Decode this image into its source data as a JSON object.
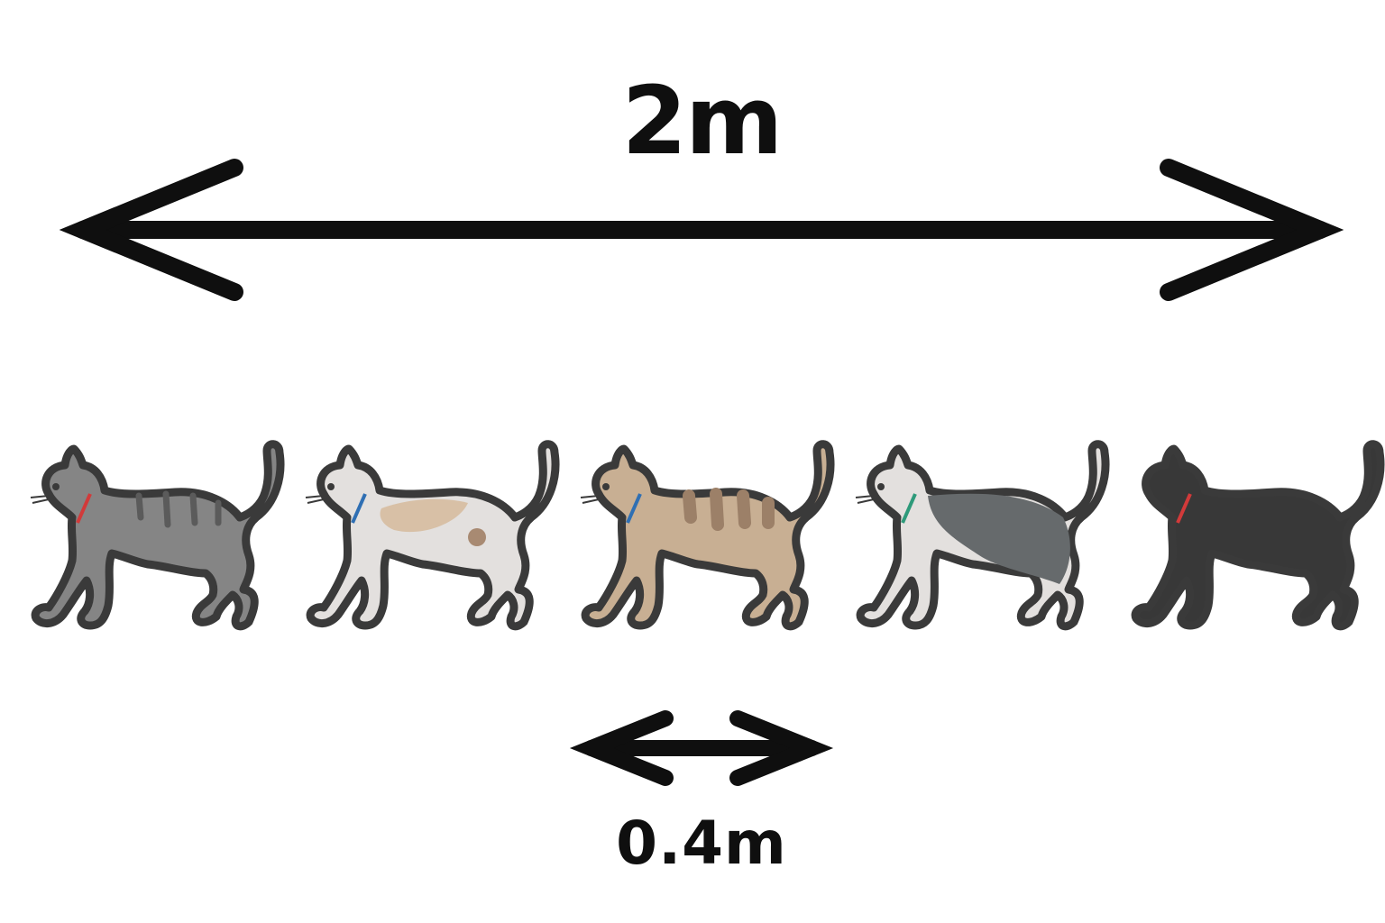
{
  "total_length": {
    "label": "2m"
  },
  "spacing": {
    "label": "0.4m"
  },
  "cats": [
    {
      "name": "grey-tabby-cat",
      "body": "#858585",
      "accent": "#5b5b5b",
      "belly": "#9a9a9a",
      "collar": "#d23a3a"
    },
    {
      "name": "calico-cat",
      "body": "#e3e0de",
      "accent": "#d8c0a6",
      "belly": "#e3e0de",
      "collar": "#2f6fb3"
    },
    {
      "name": "orange-tabby-cat",
      "body": "#c8af93",
      "accent": "#9c8068",
      "belly": "#c8af93",
      "collar": "#2f6fb3"
    },
    {
      "name": "grey-white-cat",
      "body": "#e3e0de",
      "accent": "#666a6c",
      "belly": "#e3e0de",
      "collar": "#2e9a7a"
    },
    {
      "name": "black-cat",
      "body": "#383838",
      "accent": "#383838",
      "belly": "#383838",
      "collar": "#d23a3a"
    }
  ],
  "colors": {
    "outline": "#3a3a3a",
    "arrow": "#0f0f0f"
  }
}
